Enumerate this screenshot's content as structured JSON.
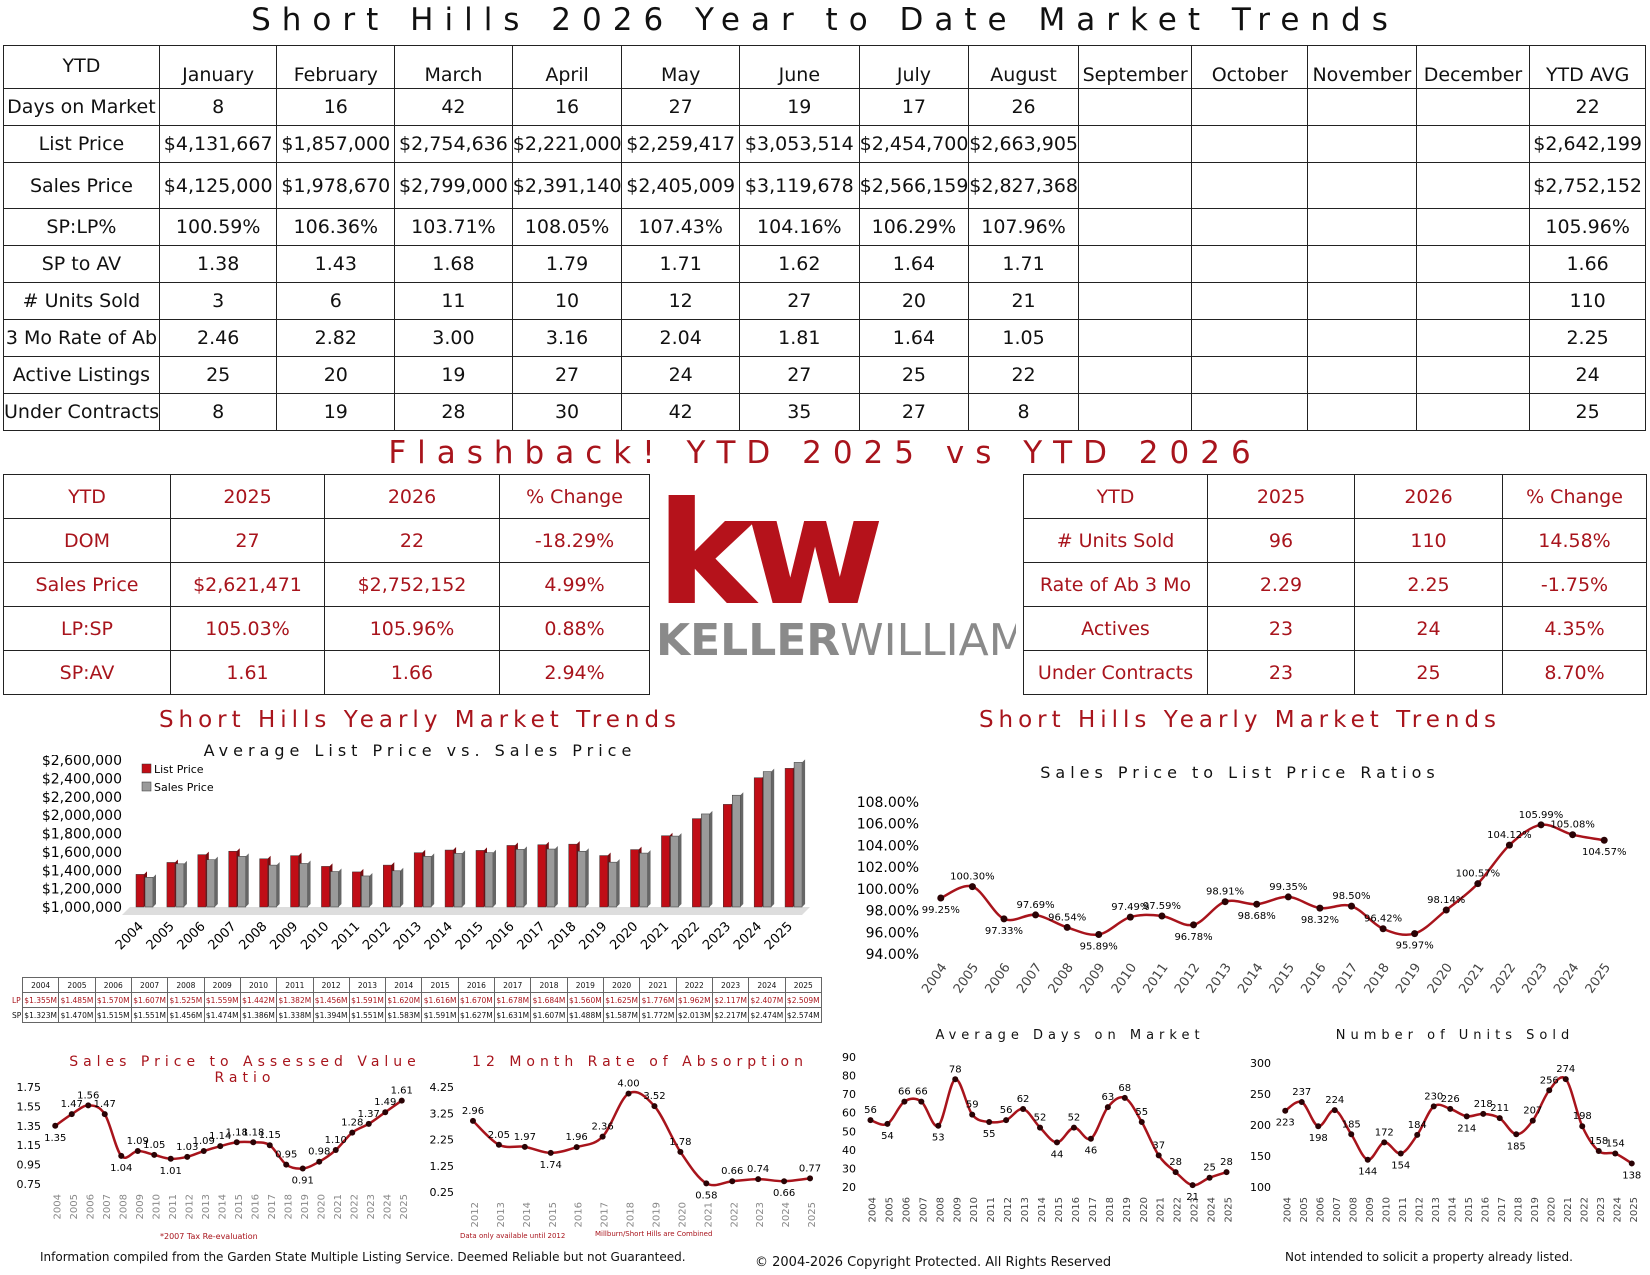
{
  "title": "Short Hills 2026 Year to Date Market Trends",
  "main_table": {
    "corner": "YTD",
    "columns": [
      "January",
      "February",
      "March",
      "April",
      "May",
      "June",
      "July",
      "August",
      "September",
      "October",
      "November",
      "December",
      "YTD AVG"
    ],
    "rows": [
      {
        "label": "Days on Market",
        "values": [
          "8",
          "16",
          "42",
          "16",
          "27",
          "19",
          "17",
          "26",
          "",
          "",
          "",
          "",
          "22"
        ]
      },
      {
        "label": "List Price",
        "values": [
          "$4,131,667",
          "$1,857,000",
          "$2,754,636",
          "$2,221,000",
          "$2,259,417",
          "$3,053,514",
          "$2,454,700",
          "$2,663,905",
          "",
          "",
          "",
          "",
          "$2,642,199"
        ]
      },
      {
        "label": "Sales Price",
        "values": [
          "$4,125,000",
          "$1,978,670",
          "$2,799,000",
          "$2,391,140",
          "$2,405,009",
          "$3,119,678",
          "$2,566,159",
          "$2,827,368",
          "",
          "",
          "",
          "",
          "$2,752,152"
        ]
      },
      {
        "label": "SP:LP%",
        "values": [
          "100.59%",
          "106.36%",
          "103.71%",
          "108.05%",
          "107.43%",
          "104.16%",
          "106.29%",
          "107.96%",
          "",
          "",
          "",
          "",
          "105.96%"
        ]
      },
      {
        "label": "SP to AV",
        "values": [
          "1.38",
          "1.43",
          "1.68",
          "1.79",
          "1.71",
          "1.62",
          "1.64",
          "1.71",
          "",
          "",
          "",
          "",
          "1.66"
        ]
      },
      {
        "label": "# Units Sold",
        "values": [
          "3",
          "6",
          "11",
          "10",
          "12",
          "27",
          "20",
          "21",
          "",
          "",
          "",
          "",
          "110"
        ]
      },
      {
        "label": "3 Mo Rate of Ab",
        "values": [
          "2.46",
          "2.82",
          "3.00",
          "3.16",
          "2.04",
          "1.81",
          "1.64",
          "1.05",
          "",
          "",
          "",
          "",
          "2.25"
        ]
      },
      {
        "label": "Active Listings",
        "values": [
          "25",
          "20",
          "19",
          "27",
          "24",
          "27",
          "25",
          "22",
          "",
          "",
          "",
          "",
          "24"
        ]
      },
      {
        "label": "Under Contracts",
        "values": [
          "8",
          "19",
          "28",
          "30",
          "42",
          "35",
          "27",
          "8",
          "",
          "",
          "",
          "",
          "25"
        ]
      }
    ]
  },
  "flashback_title": "Flashback!  YTD 2025 vs YTD 2026",
  "compare_left": {
    "header": [
      "YTD",
      "2025",
      "2026",
      "% Change"
    ],
    "rows": [
      [
        "DOM",
        "27",
        "22",
        "-18.29%"
      ],
      [
        "Sales Price",
        "$2,621,471",
        "$2,752,152",
        "4.99%"
      ],
      [
        "LP:SP",
        "105.03%",
        "105.96%",
        "0.88%"
      ],
      [
        "SP:AV",
        "1.61",
        "1.66",
        "2.94%"
      ]
    ]
  },
  "compare_right": {
    "header": [
      "YTD",
      "2025",
      "2026",
      "% Change"
    ],
    "rows": [
      [
        "# Units Sold",
        "96",
        "110",
        "14.58%"
      ],
      [
        "Rate of Ab 3 Mo",
        "2.29",
        "2.25",
        "-1.75%"
      ],
      [
        "Actives",
        "23",
        "24",
        "4.35%"
      ],
      [
        "Under Contracts",
        "23",
        "25",
        "8.70%"
      ]
    ]
  },
  "logo": {
    "mark": "kw",
    "wordmark_bold": "KELLER",
    "wordmark_light": "WILLIAMS",
    "reg": "®"
  },
  "colors": {
    "red": "#a8141c",
    "gray": "#9a9a9a",
    "dark": "#111111"
  },
  "chart_data": [
    {
      "id": "bar-list-vs-sales",
      "type": "bar",
      "title": "Short Hills Yearly Market Trends",
      "subtitle": "Average List Price vs. Sales Price",
      "categories": [
        "2004",
        "2005",
        "2006",
        "2007",
        "2008",
        "2009",
        "2010",
        "2011",
        "2012",
        "2013",
        "2014",
        "2015",
        "2016",
        "2017",
        "2018",
        "2019",
        "2020",
        "2021",
        "2022",
        "2023",
        "2024",
        "2025"
      ],
      "series": [
        {
          "name": "List Price",
          "values": [
            1355000,
            1485000,
            1570000,
            1607000,
            1525000,
            1559000,
            1442000,
            1382000,
            1456000,
            1591000,
            1620000,
            1616000,
            1670000,
            1678000,
            1684000,
            1560000,
            1625000,
            1776000,
            1962000,
            2117000,
            2407000,
            2509000
          ]
        },
        {
          "name": "Sales Price",
          "values": [
            1323000,
            1470000,
            1515000,
            1551000,
            1456000,
            1474000,
            1386000,
            1338000,
            1394000,
            1551000,
            1583000,
            1591000,
            1627000,
            1631000,
            1607000,
            1488000,
            1587000,
            1772000,
            2013000,
            2217000,
            2474000,
            2574000
          ]
        }
      ],
      "y_ticks": [
        "$1,000,000",
        "$1,200,000",
        "$1,400,000",
        "$1,600,000",
        "$1,800,000",
        "$2,000,000",
        "$2,200,000",
        "$2,400,000",
        "$2,600,000"
      ],
      "ylim": [
        1000000,
        2600000
      ],
      "legend": "top-left"
    },
    {
      "id": "line-sp-lp",
      "type": "line",
      "title": "Short Hills Yearly Market Trends",
      "subtitle": "Sales Price to List Price Ratios",
      "categories": [
        "2004",
        "2005",
        "2006",
        "2007",
        "2008",
        "2009",
        "2010",
        "2011",
        "2012",
        "2013",
        "2014",
        "2015",
        "2016",
        "2017",
        "2018",
        "2019",
        "2020",
        "2021",
        "2022",
        "2023",
        "2024",
        "2025"
      ],
      "values": [
        99.25,
        100.3,
        97.33,
        97.69,
        96.54,
        95.89,
        97.49,
        97.59,
        96.78,
        98.91,
        98.68,
        99.35,
        98.32,
        98.5,
        96.42,
        95.97,
        98.14,
        100.57,
        104.12,
        105.99,
        105.08,
        104.57
      ],
      "labels": [
        "99.25%",
        "100.30%",
        "97.33%",
        "97.69%",
        "96.54%",
        "95.89%",
        "97.49%",
        "97.59%",
        "96.78%",
        "98.91%",
        "98.68%",
        "99.35%",
        "98.32%",
        "98.50%",
        "96.42%",
        "95.97%",
        "98.14%",
        "100.57%",
        "104.12%",
        "105.99%",
        "105.08%",
        "104.57%"
      ],
      "y_ticks": [
        "94.00%",
        "96.00%",
        "98.00%",
        "100.00%",
        "102.00%",
        "104.00%",
        "106.00%",
        "108.00%"
      ],
      "ylim": [
        94,
        108
      ]
    },
    {
      "id": "line-sp-av",
      "type": "line",
      "title": "Sales Price to Assessed Value Ratio",
      "categories": [
        "2004",
        "2005",
        "2006",
        "2007",
        "2008",
        "2009",
        "2010",
        "2011",
        "2012",
        "2013",
        "2014",
        "2015",
        "2016",
        "2017",
        "2018",
        "2019",
        "2020",
        "2021",
        "2022",
        "2023",
        "2024",
        "2025"
      ],
      "values": [
        1.35,
        1.47,
        1.56,
        1.47,
        1.04,
        1.09,
        1.05,
        1.01,
        1.03,
        1.09,
        1.14,
        1.18,
        1.18,
        1.15,
        0.95,
        0.91,
        0.98,
        1.1,
        1.28,
        1.37,
        1.49,
        1.61
      ],
      "labels": [
        "1.35",
        "1.47",
        "1.56",
        "1.47",
        "1.04",
        "1.09",
        "1.05",
        "1.01",
        "1.03",
        "1.09",
        "1.14",
        "1.18",
        "1.18",
        "1.15",
        "0.95",
        "0.91",
        "0.98",
        "1.10",
        "1.28",
        "1.37",
        "1.49",
        "1.61"
      ],
      "y_ticks": [
        "0.75",
        "0.95",
        "1.15",
        "1.35",
        "1.55",
        "1.75"
      ],
      "ylim": [
        0.75,
        1.75
      ],
      "note": "*2007 Tax Re-evaluation"
    },
    {
      "id": "line-absorption",
      "type": "line",
      "title": "12 Month Rate of Absorption",
      "categories": [
        "2012",
        "2013",
        "2014",
        "2015",
        "2016",
        "2017",
        "2018",
        "2019",
        "2020",
        "2021",
        "2022",
        "2023",
        "2024",
        "2025"
      ],
      "values": [
        2.96,
        2.05,
        1.97,
        1.74,
        1.96,
        2.36,
        4.0,
        3.52,
        1.78,
        0.58,
        0.66,
        0.74,
        0.66,
        0.77
      ],
      "labels": [
        "2.96",
        "2.05",
        "1.97",
        "1.74",
        "1.96",
        "2.36",
        "4.00",
        "3.52",
        "1.78",
        "0.58",
        "0.66",
        "0.74",
        "0.66",
        "0.77"
      ],
      "y_ticks": [
        "0.25",
        "1.25",
        "2.25",
        "3.25",
        "4.25"
      ],
      "ylim": [
        0.25,
        4.25
      ],
      "notes": [
        "Data only available until 2012",
        "Millburn/Short Hills are Combined"
      ]
    },
    {
      "id": "line-dom",
      "type": "line",
      "title": "Average Days on Market",
      "categories": [
        "2004",
        "2005",
        "2006",
        "2007",
        "2008",
        "2009",
        "2010",
        "2011",
        "2012",
        "2013",
        "2014",
        "2015",
        "2016",
        "2017",
        "2018",
        "2019",
        "2020",
        "2021",
        "2022",
        "2023",
        "2024",
        "2025"
      ],
      "values": [
        56,
        54,
        66,
        66,
        53,
        78,
        59,
        55,
        56,
        62,
        52,
        44,
        52,
        46,
        63,
        68,
        55,
        37,
        28,
        21,
        25,
        28
      ],
      "labels": [
        "56",
        "54",
        "66",
        "66",
        "53",
        "78",
        "59",
        "55",
        "56",
        "62",
        "52",
        "44",
        "52",
        "46",
        "63",
        "68",
        "55",
        "37",
        "28",
        "21",
        "25",
        "28"
      ],
      "y_ticks": [
        "20",
        "30",
        "40",
        "50",
        "60",
        "70",
        "80",
        "90"
      ],
      "ylim": [
        20,
        90
      ]
    },
    {
      "id": "line-units",
      "type": "line",
      "title": "Number of Units Sold",
      "categories": [
        "2004",
        "2005",
        "2006",
        "2007",
        "2008",
        "2009",
        "2010",
        "2011",
        "2012",
        "2013",
        "2014",
        "2015",
        "2016",
        "2017",
        "2018",
        "2019",
        "2020",
        "2021",
        "2022",
        "2023",
        "2024",
        "2025"
      ],
      "values": [
        223,
        237,
        198,
        224,
        185,
        144,
        172,
        154,
        184,
        230,
        226,
        214,
        218,
        211,
        185,
        207,
        256,
        274,
        198,
        158,
        154,
        138
      ],
      "labels": [
        "223",
        "237",
        "198",
        "224",
        "185",
        "144",
        "172",
        "154",
        "184",
        "230",
        "226",
        "214",
        "218",
        "211",
        "185",
        "207",
        "256",
        "274",
        "198",
        "158",
        "154",
        "138"
      ],
      "y_ticks": [
        "100",
        "150",
        "200",
        "250",
        "300"
      ],
      "ylim": [
        100,
        300
      ]
    }
  ],
  "mini_table": {
    "years": [
      "2004",
      "2005",
      "2006",
      "2007",
      "2008",
      "2009",
      "2010",
      "2011",
      "2012",
      "2013",
      "2014",
      "2015",
      "2016",
      "2017",
      "2018",
      "2019",
      "2020",
      "2021",
      "2022",
      "2023",
      "2024",
      "2025"
    ],
    "lp_label": "LP",
    "sp_label": "SP",
    "lp": [
      "$1.355M",
      "$1.485M",
      "$1.570M",
      "$1.607M",
      "$1.525M",
      "$1.559M",
      "$1.442M",
      "$1.382M",
      "$1.456M",
      "$1.591M",
      "$1.620M",
      "$1.616M",
      "$1.670M",
      "$1.678M",
      "$1.684M",
      "$1.560M",
      "$1.625M",
      "$1.776M",
      "$1.962M",
      "$2.117M",
      "$2.407M",
      "$2.509M"
    ],
    "sp": [
      "$1.323M",
      "$1.470M",
      "$1.515M",
      "$1.551M",
      "$1.456M",
      "$1.474M",
      "$1.386M",
      "$1.338M",
      "$1.394M",
      "$1.551M",
      "$1.583M",
      "$1.591M",
      "$1.627M",
      "$1.631M",
      "$1.607M",
      "$1.488M",
      "$1.587M",
      "$1.772M",
      "$2.013M",
      "$2.217M",
      "$2.474M",
      "$2.574M"
    ]
  },
  "footer": {
    "left": "Information compiled from the Garden State Multiple Listing Service.  Deemed Reliable but not Guaranteed.",
    "center": "© 2004-2026 Copyright Protected.  All Rights Reserved",
    "right": "Not intended to solicit a property already listed."
  }
}
